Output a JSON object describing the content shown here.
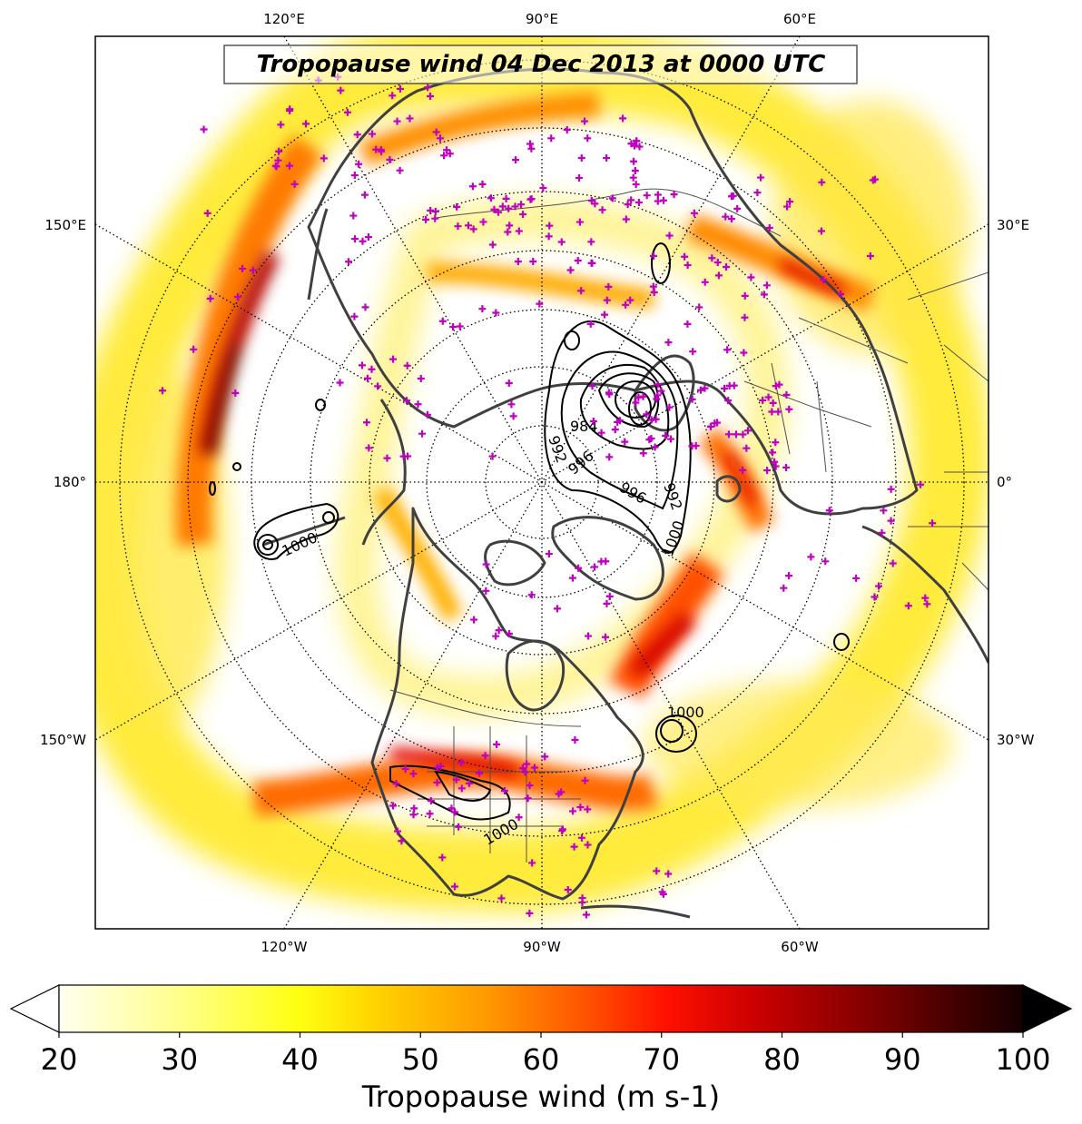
{
  "map": {
    "title": "Tropopause wind 04 Dec 2013 at 0000 UTC",
    "projection": "north-polar-stereographic",
    "center_longitude": "90°W",
    "lon_labels_top": [
      "120°E",
      "90°E",
      "60°E"
    ],
    "lon_labels_bottom": [
      "120°W",
      "90°W",
      "60°W"
    ],
    "lon_labels_left": [
      "150°E",
      "180°",
      "150°W"
    ],
    "lon_labels_right": [
      "30°E",
      "0°",
      "30°W"
    ],
    "pressure_contour_labels": [
      "984",
      "992",
      "996",
      "992",
      "996",
      "1000",
      "1000",
      "1000",
      "1000"
    ],
    "station_marker": "plus",
    "station_color": "#c000c0",
    "coastline_color": "#404040",
    "grid_style": "dotted"
  },
  "colorbar": {
    "label": "Tropopause wind (m s-1)",
    "ticks": [
      "20",
      "30",
      "40",
      "50",
      "60",
      "70",
      "80",
      "90",
      "100"
    ],
    "min": 20,
    "max": 100,
    "extend": "both",
    "colormap": "hot_r"
  }
}
